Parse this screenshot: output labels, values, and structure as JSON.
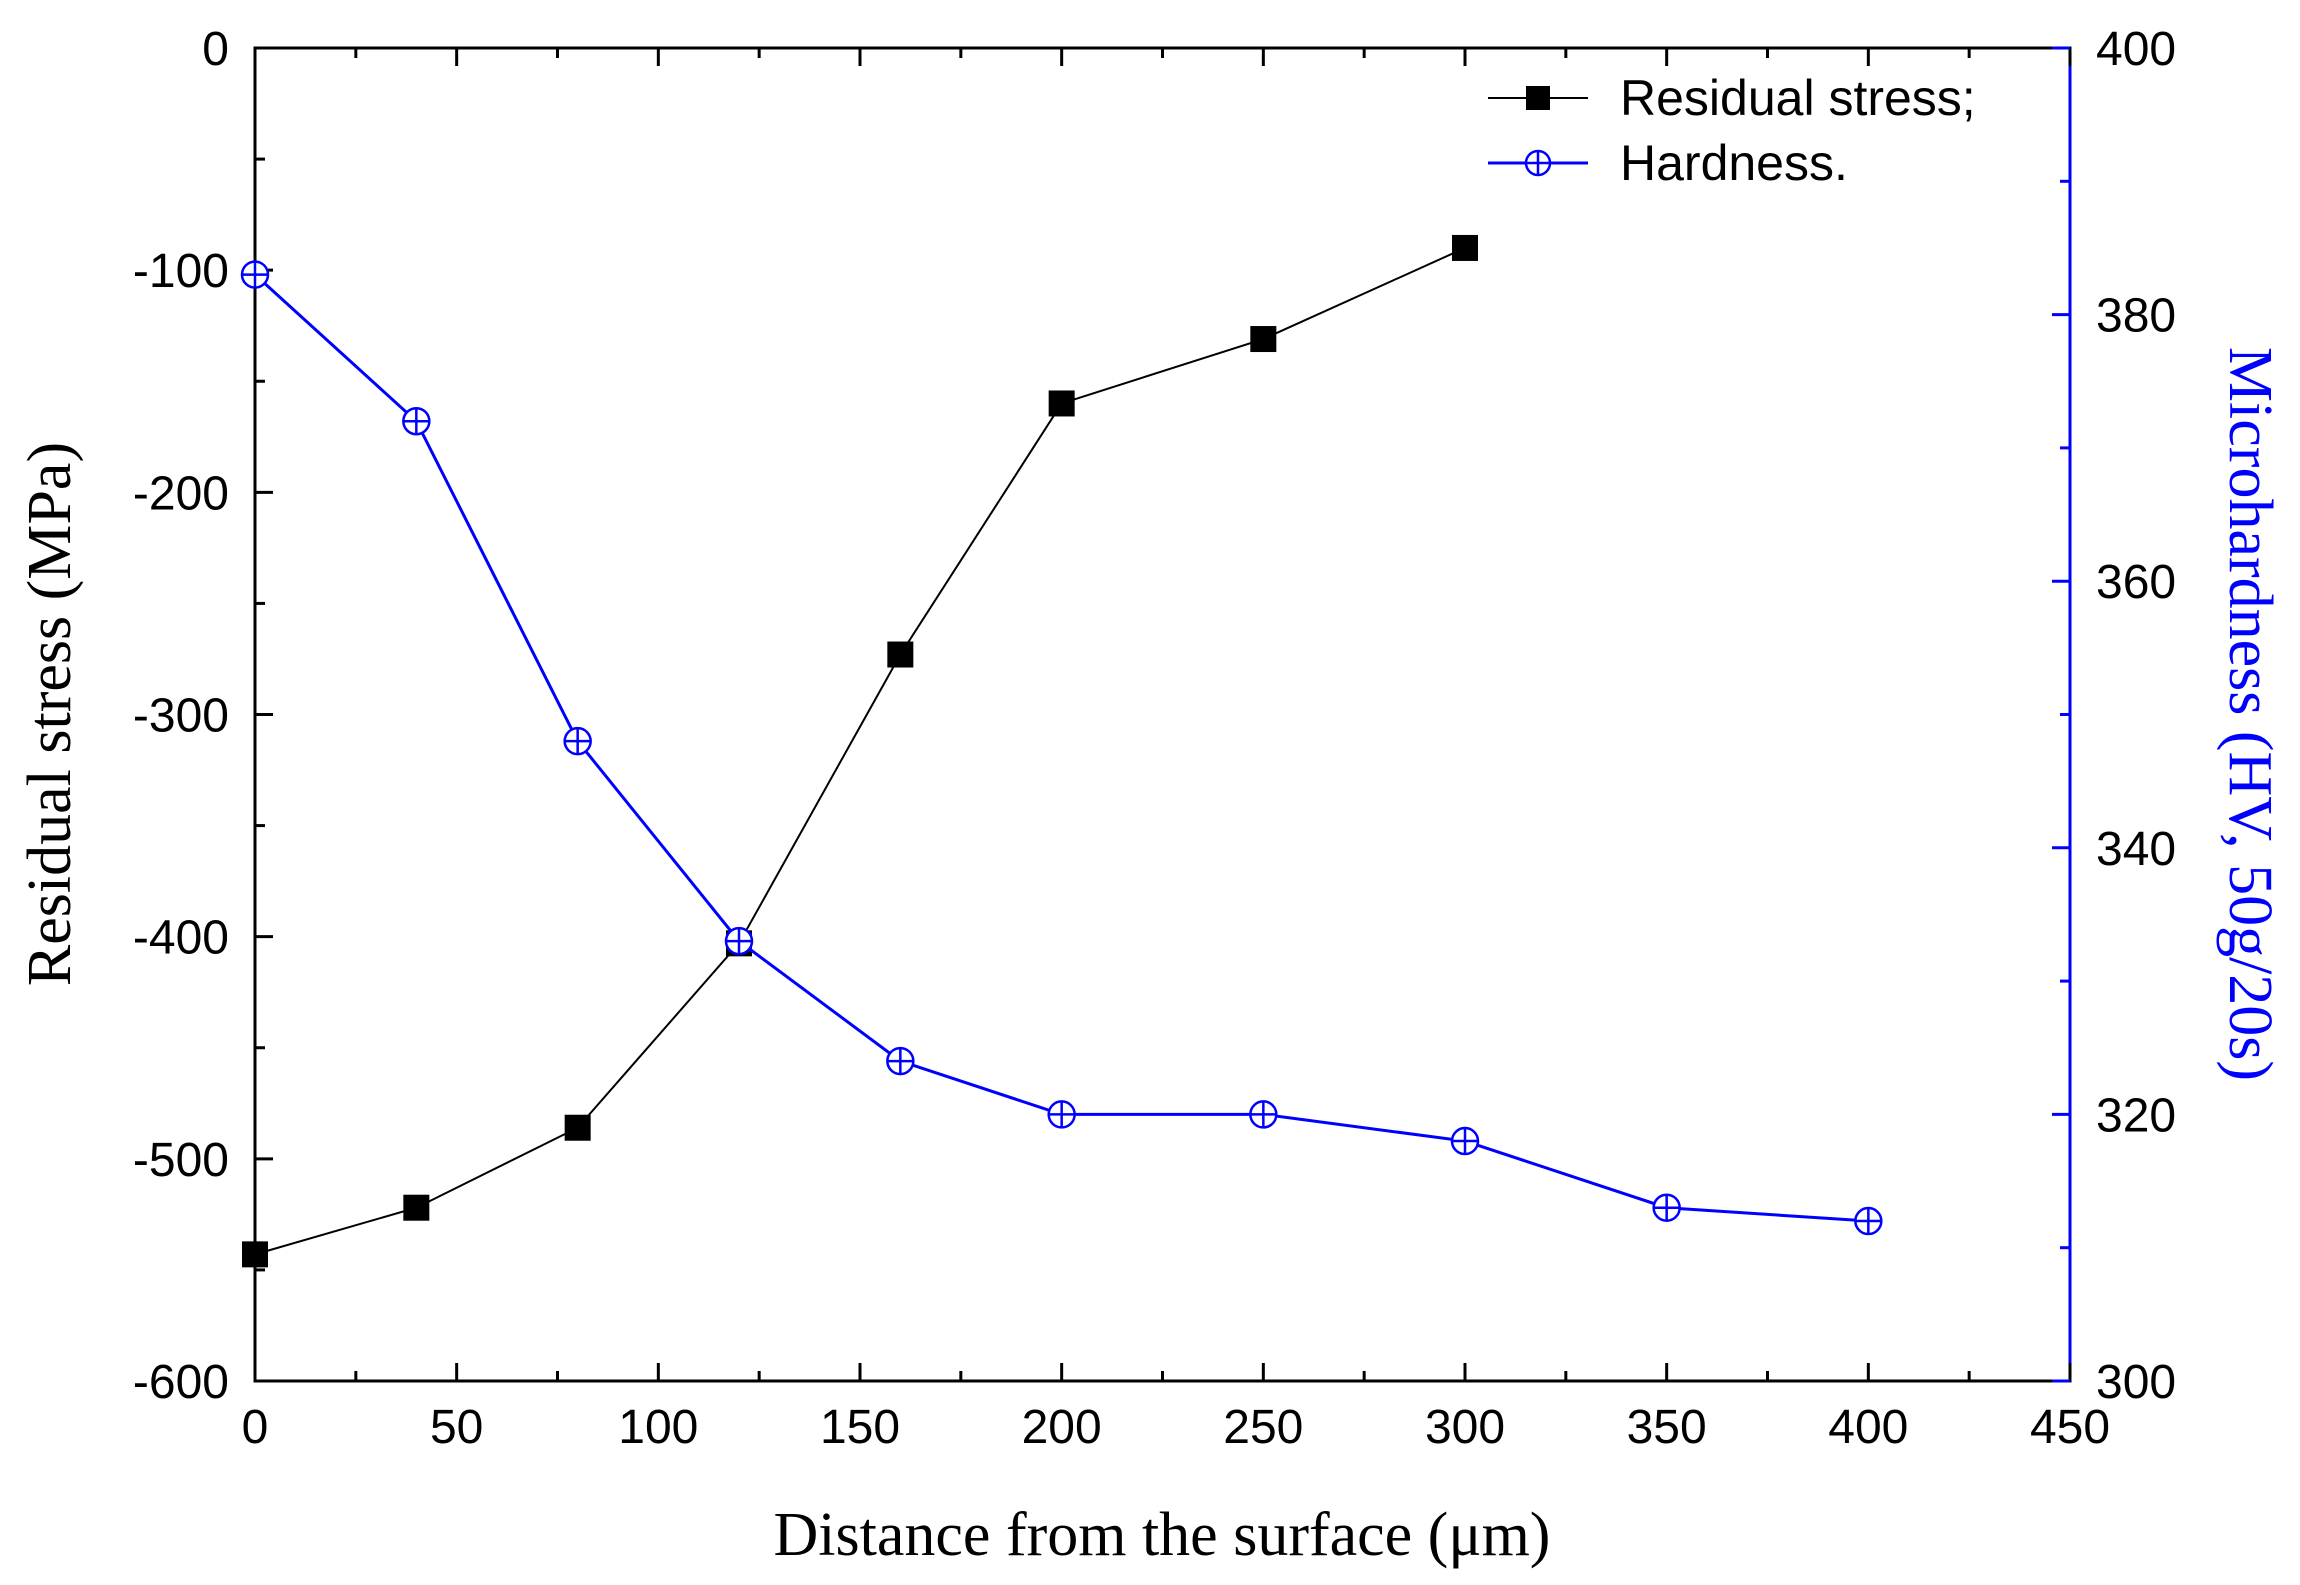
{
  "chart_data": {
    "type": "line",
    "xlabel": "Distance from the surface (μm)",
    "ylabel_left": "Residual stress (MPa)",
    "ylabel_right": "Microhardness (HV, 50g/20s)",
    "xlim": [
      0,
      450
    ],
    "ylim_left": [
      -600,
      0
    ],
    "ylim_right": [
      300,
      400
    ],
    "x_ticks": [
      0,
      50,
      100,
      150,
      200,
      250,
      300,
      350,
      400,
      450
    ],
    "y_left_ticks": [
      0,
      -100,
      -200,
      -300,
      -400,
      -500,
      -600
    ],
    "y_right_ticks": [
      400,
      380,
      360,
      340,
      320,
      300
    ],
    "colors": {
      "residual": "#000000",
      "hardness": "#0000ff",
      "right_axis": "#0000ff"
    },
    "series": [
      {
        "name": "Residual stress;",
        "axis": "left",
        "marker": "filled-square",
        "x": [
          0,
          40,
          80,
          120,
          160,
          200,
          250,
          300
        ],
        "values": [
          -543,
          -522,
          -486,
          -403,
          -273,
          -160,
          -131,
          -90
        ]
      },
      {
        "name": "Hardness.",
        "axis": "right",
        "marker": "circle-plus",
        "x": [
          0,
          40,
          80,
          120,
          160,
          200,
          250,
          300,
          350,
          400
        ],
        "values": [
          383,
          372,
          348,
          333,
          324,
          320,
          320,
          318,
          313,
          312
        ]
      }
    ]
  }
}
